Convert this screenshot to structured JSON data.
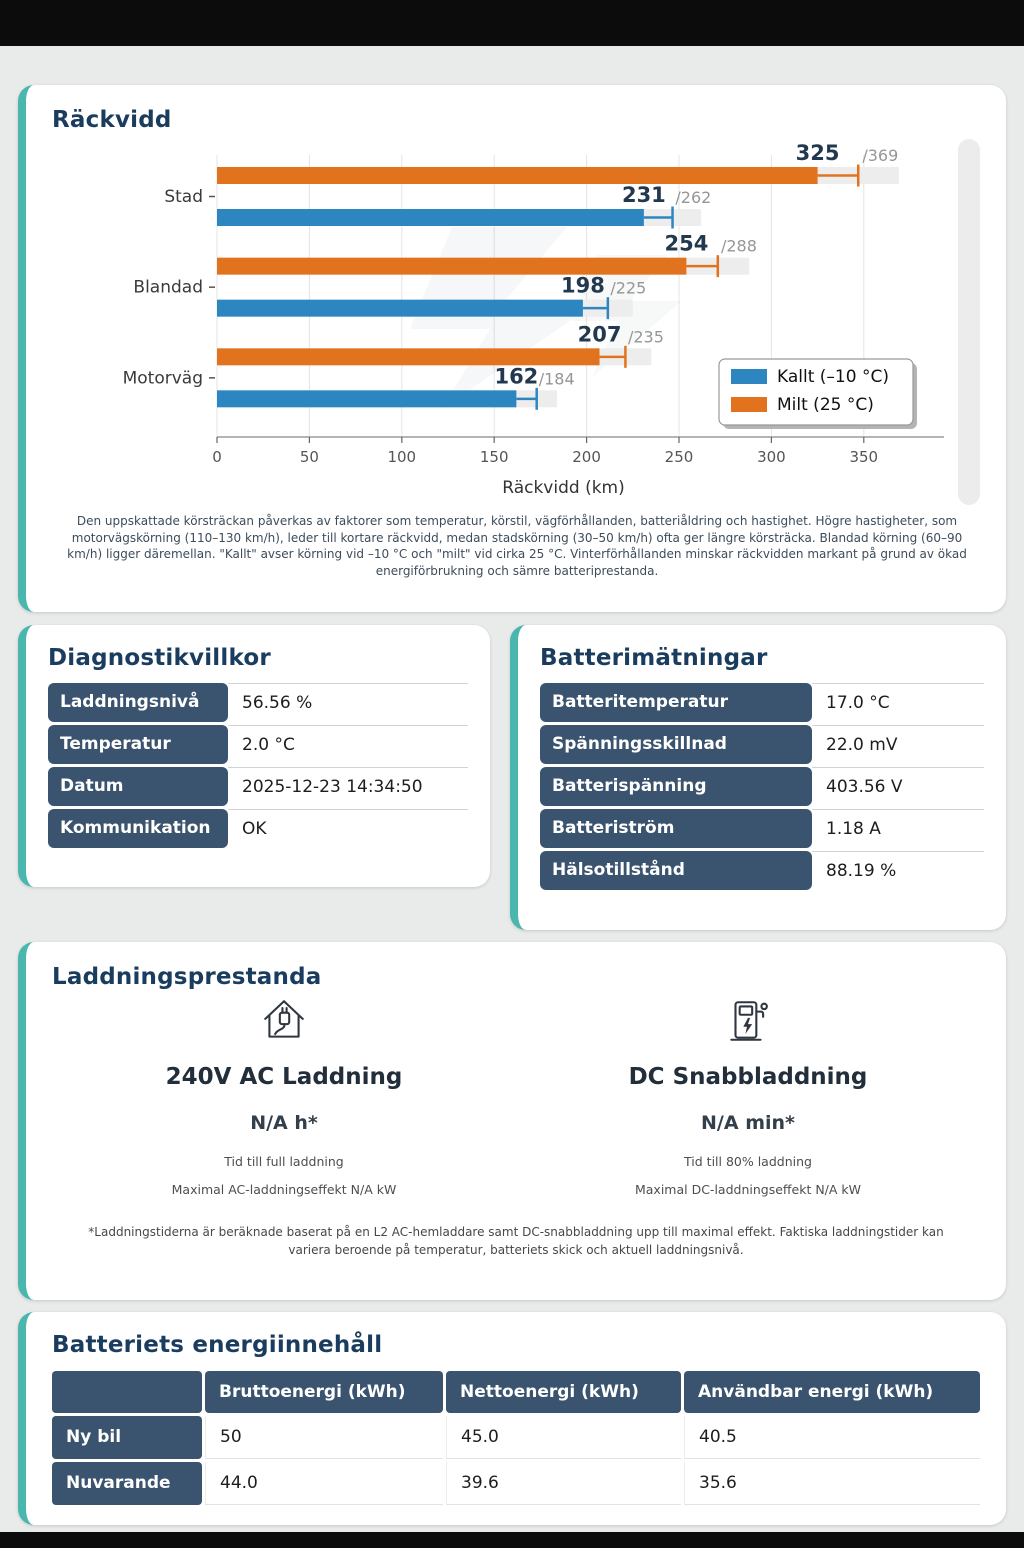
{
  "colors": {
    "accent_teal": "#4ab7ae",
    "title_navy": "#1a3c5e",
    "table_header_bg": "#3a536e",
    "bar_cold_blue": "#2e86c1",
    "bar_mild_orange": "#e2731e",
    "page_background": "#e9eaea",
    "top_bottom_bar": "#0c0c0c"
  },
  "chart_data": {
    "type": "bar",
    "orientation": "horizontal",
    "title": "Räckvidd",
    "categories": [
      "Stad",
      "Blandad",
      "Motorväg"
    ],
    "series": [
      {
        "name": "Kallt (–10 °C)",
        "color": "#2e86c1",
        "values": [
          231,
          198,
          162
        ],
        "max_values": [
          262,
          225,
          184
        ]
      },
      {
        "name": "Milt (25 °C)",
        "color": "#e2731e",
        "values": [
          325,
          254,
          207
        ],
        "max_values": [
          369,
          288,
          235
        ]
      }
    ],
    "value_labels": [
      "325 /369",
      "231 /262",
      "254 /288",
      "198 /225",
      "207 /235",
      "162 /184"
    ],
    "xlabel": "Räckvidd (km)",
    "xlim": [
      0,
      375
    ],
    "xticks": [
      0,
      50,
      100,
      150,
      200,
      250,
      300,
      350
    ],
    "grid": true,
    "legend_position": "right-bottom"
  },
  "range_card": {
    "title": "Räckvidd",
    "description": "Den uppskattade körsträckan påverkas av faktorer som temperatur, körstil, vägförhållanden, batteriåldring och hastighet. Högre hastigheter, som motorvägskörning (110–130 km/h), leder till kortare räckvidd, medan stadskörning (30–50 km/h) ofta ger längre körsträcka. Blandad körning (60–90 km/h) ligger däremellan. \"Kallt\" avser körning vid –10 °C och \"milt\" vid cirka 25 °C. Vinterförhållanden minskar räckvidden markant på grund av ökad energiförbrukning och sämre batteriprestanda."
  },
  "diagnostics_card": {
    "title": "Diagnostikvillkor",
    "rows": [
      {
        "label": "Laddningsnivå",
        "value": "56.56 %"
      },
      {
        "label": "Temperatur",
        "value": "2.0 °C"
      },
      {
        "label": "Datum",
        "value": "2025-12-23 14:34:50"
      },
      {
        "label": "Kommunikation",
        "value": "OK"
      }
    ]
  },
  "battery_card": {
    "title": "Batterimätningar",
    "rows": [
      {
        "label": "Batteritemperatur",
        "value": "17.0 °C"
      },
      {
        "label": "Spänningsskillnad",
        "value": "22.0 mV"
      },
      {
        "label": "Batterispänning",
        "value": "403.56 V"
      },
      {
        "label": "Batteriström",
        "value": "1.18 A"
      },
      {
        "label": "Hälsotillstånd",
        "value": "88.19 %"
      }
    ]
  },
  "charging_card": {
    "title": "Laddningsprestanda",
    "ac": {
      "icon": "house-plug-icon",
      "heading": "240V AC Laddning",
      "value": "N/A h*",
      "line1": "Tid till full laddning",
      "line2": "Maximal AC-laddningseffekt N/A kW"
    },
    "dc": {
      "icon": "ev-charger-icon",
      "heading": "DC Snabbladdning",
      "value": "N/A min*",
      "line1": "Tid till 80% laddning",
      "line2": "Maximal DC-laddningseffekt N/A kW"
    },
    "footnote": "*Laddningstiderna är beräknade baserat på en L2 AC-hemladdare samt DC-snabbladdning upp till maximal effekt. Faktiska laddningstider kan variera beroende på temperatur, batteriets skick och aktuell laddningsnivå."
  },
  "energy_card": {
    "title": "Batteriets energiinnehåll",
    "corner_label": "",
    "headers": [
      "Bruttoenergi (kWh)",
      "Nettoenergi (kWh)",
      "Användbar energi (kWh)"
    ],
    "rows": [
      {
        "label": "Ny bil",
        "values": [
          "50",
          "45.0",
          "40.5"
        ]
      },
      {
        "label": "Nuvarande",
        "values": [
          "44.0",
          "39.6",
          "35.6"
        ]
      }
    ]
  }
}
